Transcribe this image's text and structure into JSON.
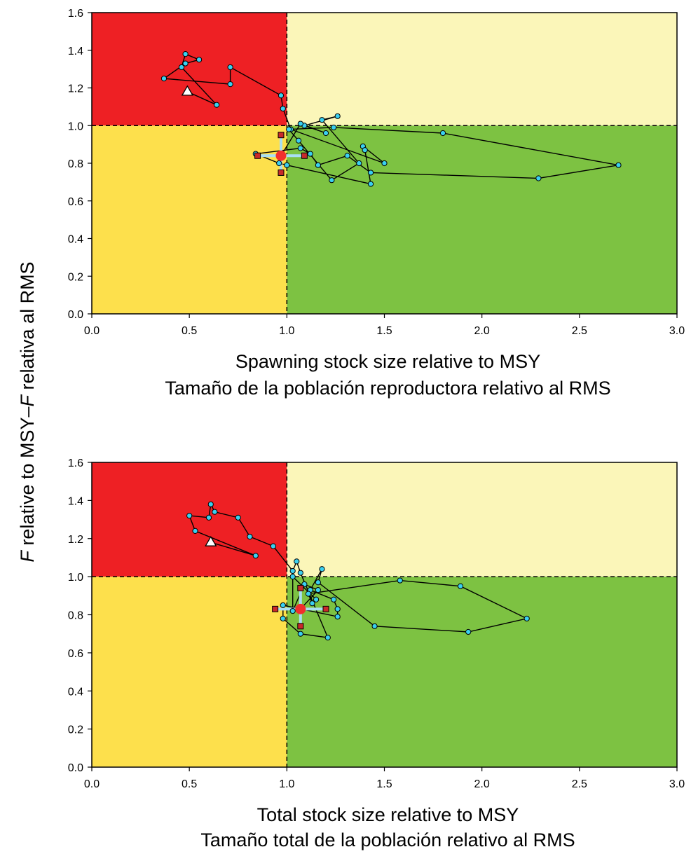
{
  "figure": {
    "ylabel_prefix": "F",
    "ylabel_mid": " relative to MSY–",
    "ylabel_prefix2": "F",
    "ylabel_suffix": " relativa al RMS"
  },
  "colors": {
    "red_zone": "#ee2024",
    "light_yellow_zone": "#fbf6b9",
    "yellow_zone": "#fde04c",
    "green_zone": "#7dc242",
    "point": "#3ad0f0",
    "current": "#f22e2e",
    "ci_marker": "#c92a2a",
    "ci_line": "#a9dff3"
  },
  "chart_data": [
    {
      "type": "scatter",
      "xlabel": "Spawning stock size relative to MSY",
      "xlabel2": "Tamaño de la población reproductora relativo al RMS",
      "ylabel": "",
      "xlim": [
        0,
        3
      ],
      "ylim": [
        0,
        1.6
      ],
      "x_ticks": [
        "0.0",
        "0.5",
        "1.0",
        "1.5",
        "2.0",
        "2.5",
        "3.0"
      ],
      "y_ticks": [
        "0.0",
        "0.2",
        "0.4",
        "0.6",
        "0.8",
        "1.0",
        "1.2",
        "1.4",
        "1.6"
      ],
      "reference_lines": {
        "x": 1.0,
        "y": 1.0
      },
      "trajectory": [
        [
          0.64,
          1.11
        ],
        [
          0.46,
          1.31
        ],
        [
          0.48,
          1.38
        ],
        [
          0.55,
          1.35
        ],
        [
          0.48,
          1.33
        ],
        [
          0.37,
          1.25
        ],
        [
          0.71,
          1.22
        ],
        [
          0.71,
          1.31
        ],
        [
          0.97,
          1.16
        ],
        [
          0.98,
          1.09
        ],
        [
          1.02,
          0.98
        ],
        [
          1.5,
          0.8
        ],
        [
          1.39,
          0.89
        ],
        [
          1.4,
          0.87
        ],
        [
          1.43,
          0.69
        ],
        [
          1.0,
          0.79
        ],
        [
          0.96,
          0.8
        ],
        [
          0.84,
          0.85
        ],
        [
          1.07,
          0.88
        ],
        [
          1.12,
          0.85
        ],
        [
          1.16,
          0.79
        ],
        [
          1.31,
          0.84
        ],
        [
          1.43,
          0.75
        ],
        [
          2.29,
          0.72
        ],
        [
          2.7,
          0.79
        ],
        [
          1.8,
          0.96
        ],
        [
          1.24,
          0.99
        ],
        [
          1.01,
          0.98
        ],
        [
          1.06,
          0.92
        ],
        [
          1.23,
          0.71
        ],
        [
          1.37,
          0.8
        ],
        [
          1.18,
          1.03
        ],
        [
          1.26,
          1.05
        ],
        [
          1.09,
          1.0
        ],
        [
          1.2,
          0.96
        ],
        [
          1.07,
          1.01
        ]
      ],
      "start": {
        "x": 0.49,
        "y": 1.18
      },
      "current": {
        "x": 0.97,
        "y": 0.84
      },
      "ci_x": [
        0.85,
        1.09
      ],
      "ci_y": [
        0.75,
        0.95
      ]
    },
    {
      "type": "scatter",
      "xlabel": "Total stock size relative to MSY",
      "xlabel2": "Tamaño total de la población relativo al RMS",
      "ylabel": "",
      "xlim": [
        0,
        3
      ],
      "ylim": [
        0,
        1.6
      ],
      "x_ticks": [
        "0.0",
        "0.5",
        "1.0",
        "1.5",
        "2.0",
        "2.5",
        "3.0"
      ],
      "y_ticks": [
        "0.0",
        "0.2",
        "0.4",
        "0.6",
        "0.8",
        "1.0",
        "1.2",
        "1.4",
        "1.6"
      ],
      "reference_lines": {
        "x": 1.0,
        "y": 1.0
      },
      "trajectory": [
        [
          0.84,
          1.11
        ],
        [
          0.53,
          1.24
        ],
        [
          0.5,
          1.32
        ],
        [
          0.6,
          1.31
        ],
        [
          0.61,
          1.38
        ],
        [
          0.63,
          1.34
        ],
        [
          0.75,
          1.31
        ],
        [
          0.81,
          1.21
        ],
        [
          0.93,
          1.16
        ],
        [
          1.03,
          1.03
        ],
        [
          1.05,
          1.08
        ],
        [
          1.07,
          1.02
        ],
        [
          1.21,
          0.68
        ],
        [
          1.07,
          0.7
        ],
        [
          0.98,
          0.78
        ],
        [
          0.98,
          0.85
        ],
        [
          1.26,
          0.79
        ],
        [
          1.26,
          0.83
        ],
        [
          1.24,
          0.88
        ],
        [
          1.12,
          0.93
        ],
        [
          1.18,
          1.04
        ],
        [
          1.16,
          0.97
        ],
        [
          1.45,
          0.74
        ],
        [
          1.93,
          0.71
        ],
        [
          2.23,
          0.78
        ],
        [
          1.89,
          0.95
        ],
        [
          1.58,
          0.98
        ],
        [
          1.11,
          0.91
        ],
        [
          1.13,
          0.86
        ],
        [
          1.15,
          0.88
        ],
        [
          1.03,
          1.0
        ],
        [
          1.03,
          0.82
        ],
        [
          1.09,
          0.96
        ],
        [
          1.16,
          0.93
        ]
      ],
      "start": {
        "x": 0.61,
        "y": 1.18
      },
      "current": {
        "x": 1.07,
        "y": 0.83
      },
      "ci_x": [
        0.94,
        1.2
      ],
      "ci_y": [
        0.74,
        0.94
      ]
    }
  ]
}
